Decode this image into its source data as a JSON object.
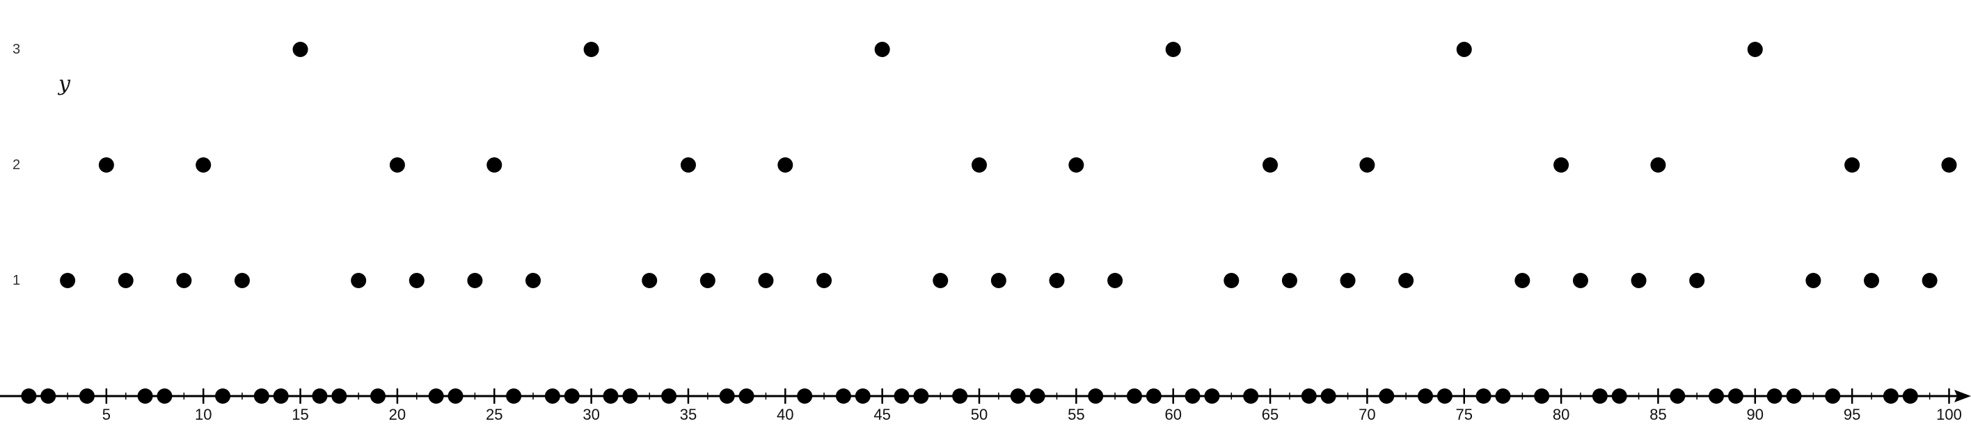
{
  "chart_data": {
    "type": "scatter",
    "title": "",
    "xlabel": "",
    "ylabel": "y",
    "xlim": [
      1,
      101
    ],
    "ylim": [
      0,
      3
    ],
    "grid": false,
    "legend": "none",
    "x_tick_labels": [
      "5",
      "10",
      "15",
      "20",
      "25",
      "30",
      "35",
      "40",
      "45",
      "50",
      "55",
      "60",
      "65",
      "70",
      "75",
      "80",
      "85",
      "90",
      "95",
      "100"
    ],
    "y_tick_labels": [
      "1",
      "2",
      "3"
    ],
    "marker_color": "#000000",
    "axis_color": "#000000",
    "x": [
      1,
      2,
      3,
      4,
      5,
      6,
      7,
      8,
      9,
      10,
      11,
      12,
      13,
      14,
      15,
      16,
      17,
      18,
      19,
      20,
      21,
      22,
      23,
      24,
      25,
      26,
      27,
      28,
      29,
      30,
      31,
      32,
      33,
      34,
      35,
      36,
      37,
      38,
      39,
      40,
      41,
      42,
      43,
      44,
      45,
      46,
      47,
      48,
      49,
      50,
      51,
      52,
      53,
      54,
      55,
      56,
      57,
      58,
      59,
      60,
      61,
      62,
      63,
      64,
      65,
      66,
      67,
      68,
      69,
      70,
      71,
      72,
      73,
      74,
      75,
      76,
      77,
      78,
      79,
      80,
      81,
      82,
      83,
      84,
      85,
      86,
      87,
      88,
      89,
      90,
      91,
      92,
      93,
      94,
      95,
      96,
      97,
      98,
      99,
      100
    ],
    "y": [
      0,
      0,
      1,
      0,
      2,
      1,
      0,
      0,
      1,
      2,
      0,
      1,
      0,
      0,
      3,
      0,
      0,
      1,
      0,
      2,
      1,
      0,
      0,
      1,
      2,
      0,
      1,
      0,
      0,
      3,
      0,
      0,
      1,
      0,
      2,
      1,
      0,
      0,
      1,
      2,
      0,
      1,
      0,
      0,
      3,
      0,
      0,
      1,
      0,
      2,
      1,
      0,
      0,
      1,
      2,
      0,
      1,
      0,
      0,
      3,
      0,
      0,
      1,
      0,
      2,
      1,
      0,
      0,
      1,
      2,
      0,
      1,
      0,
      0,
      3,
      0,
      0,
      1,
      0,
      2,
      1,
      0,
      0,
      1,
      2,
      0,
      1,
      0,
      0,
      3,
      0,
      0,
      1,
      0,
      2,
      1,
      0,
      0,
      1,
      2
    ]
  }
}
